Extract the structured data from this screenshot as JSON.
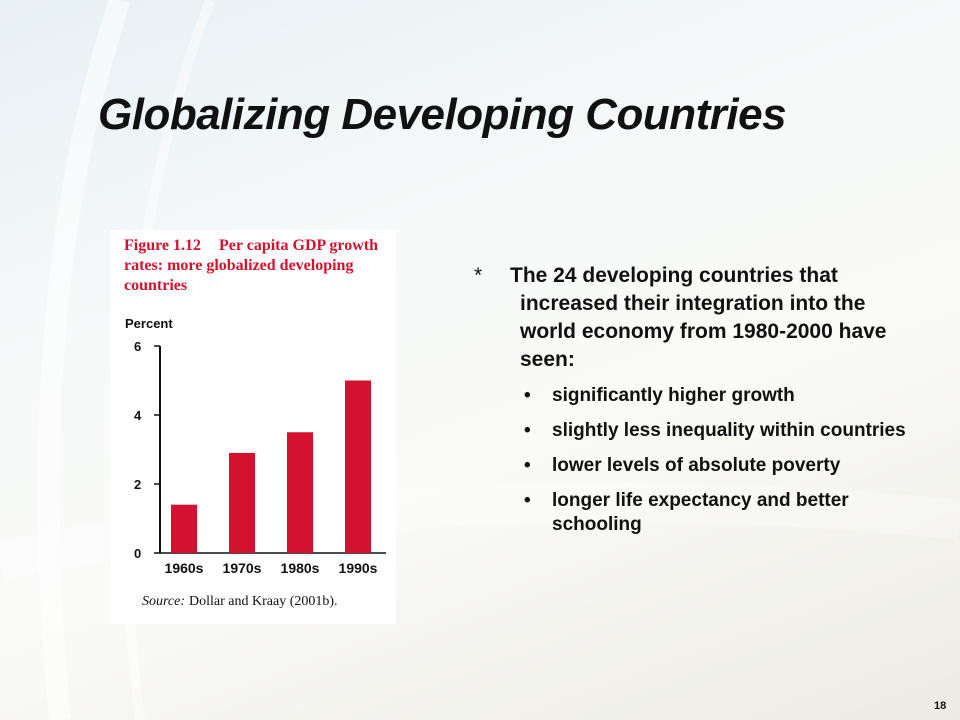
{
  "slide": {
    "title": "Globalizing Developing Countries",
    "page_number": "18"
  },
  "figure": {
    "caption_number": "Figure 1.12",
    "caption_text": "Per capita GDP growth rates: more globalized developing countries",
    "source_label": "Source:",
    "source_text": "Dollar and Kraay (2001b)."
  },
  "chart_data": {
    "type": "bar",
    "ylabel": "Percent",
    "categories": [
      "1960s",
      "1970s",
      "1980s",
      "1990s"
    ],
    "values": [
      1.4,
      2.9,
      3.5,
      5.0
    ],
    "ylim": [
      0,
      6
    ],
    "yticks": [
      0,
      2,
      4,
      6
    ],
    "grid": false,
    "bar_color": "#d3122f"
  },
  "content": {
    "marker": "*",
    "lead": "The 24 developing countries that increased their integration into the world economy from 1980-2000 have seen:",
    "bullet_char": "•",
    "bullets": [
      "significantly higher growth",
      "slightly less inequality within countries",
      "lower levels of absolute poverty",
      "longer life expectancy and better schooling"
    ]
  }
}
